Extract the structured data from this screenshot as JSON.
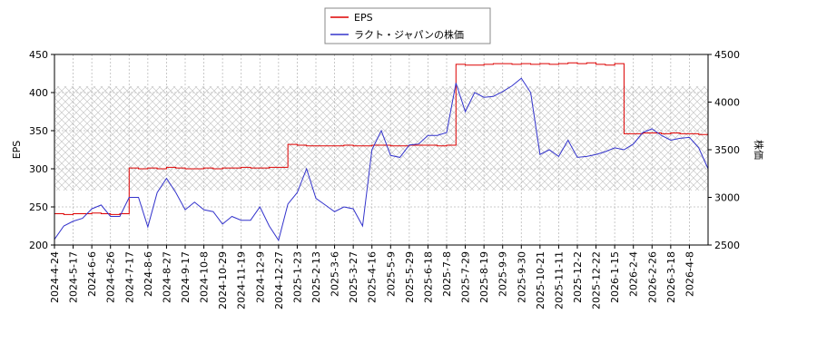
{
  "chart_data": {
    "type": "line",
    "categories": [
      "2024-4-24",
      null,
      "2024-5-17",
      null,
      "2024-6-6",
      null,
      "2024-6-26",
      null,
      "2024-7-17",
      null,
      "2024-8-6",
      null,
      "2024-8-27",
      null,
      "2024-9-17",
      null,
      "2024-10-8",
      null,
      "2024-10-29",
      null,
      "2024-11-19",
      null,
      "2024-12-9",
      null,
      "2024-12-27",
      null,
      "2025-1-23",
      null,
      "2025-2-13",
      null,
      "2025-3-6",
      null,
      "2025-3-27",
      null,
      "2025-4-16",
      null,
      "2025-5-9",
      null,
      "2025-5-29",
      null,
      "2025-6-18",
      null,
      "2025-7-8",
      null,
      "2025-7-29",
      null,
      "2025-8-19",
      null,
      "2025-9-9",
      null,
      "2025-9-30",
      null,
      "2025-10-21",
      null,
      "2025-11-11",
      null,
      "2025-12-2",
      null,
      "2025-12-22",
      null,
      "2026-1-15",
      null,
      "2026-2-4",
      null,
      "2026-2-26",
      null,
      "2026-3-18",
      null,
      "2026-4-8",
      null,
      null
    ],
    "series": [
      {
        "name": "EPS",
        "color": "#dd0000",
        "drawstyle": "steps-post",
        "values": [
          241,
          240,
          241,
          241,
          242,
          241,
          240,
          241,
          301,
          300,
          301,
          300,
          302,
          301,
          300,
          300,
          301,
          300,
          301,
          301,
          302,
          301,
          301,
          302,
          302,
          332,
          331,
          330,
          330,
          330,
          330,
          331,
          330,
          330,
          331,
          331,
          330,
          330,
          331,
          331,
          331,
          330,
          331,
          437,
          436,
          436,
          437,
          438,
          438,
          437,
          438,
          437,
          438,
          437,
          438,
          439,
          438,
          439,
          437,
          436,
          438,
          346,
          346,
          347,
          347,
          346,
          347,
          346,
          346,
          345,
          345
        ]
      },
      {
        "name": "ラクト・ジャパンの株価",
        "color": "#3333cc",
        "axis": "y2",
        "values": [
          2560,
          2700,
          2750,
          2780,
          2880,
          2920,
          2800,
          2800,
          3000,
          3000,
          2690,
          3050,
          3200,
          3050,
          2870,
          2950,
          2870,
          2850,
          2720,
          2800,
          2760,
          2760,
          2900,
          2700,
          2550,
          2930,
          3050,
          3300,
          2990,
          2920,
          2850,
          2900,
          2880,
          2700,
          3500,
          3700,
          3440,
          3420,
          3550,
          3560,
          3650,
          3650,
          3680,
          4200,
          3900,
          4100,
          4050,
          4060,
          4110,
          4170,
          4250,
          4100,
          3450,
          3500,
          3430,
          3600,
          3420,
          3430,
          3450,
          3480,
          3520,
          3500,
          3560,
          3680,
          3720,
          3650,
          3600,
          3620,
          3630,
          3520,
          3300
        ]
      }
    ],
    "ylim": [
      200,
      450
    ],
    "yticks": [
      200,
      250,
      300,
      350,
      400,
      450
    ],
    "y2lim": [
      2500,
      4500
    ],
    "y2ticks": [
      2500,
      3000,
      3500,
      4000,
      4500
    ],
    "ylabel": "EPS",
    "y2label": "株価",
    "grid": true,
    "legend": "upper center"
  }
}
